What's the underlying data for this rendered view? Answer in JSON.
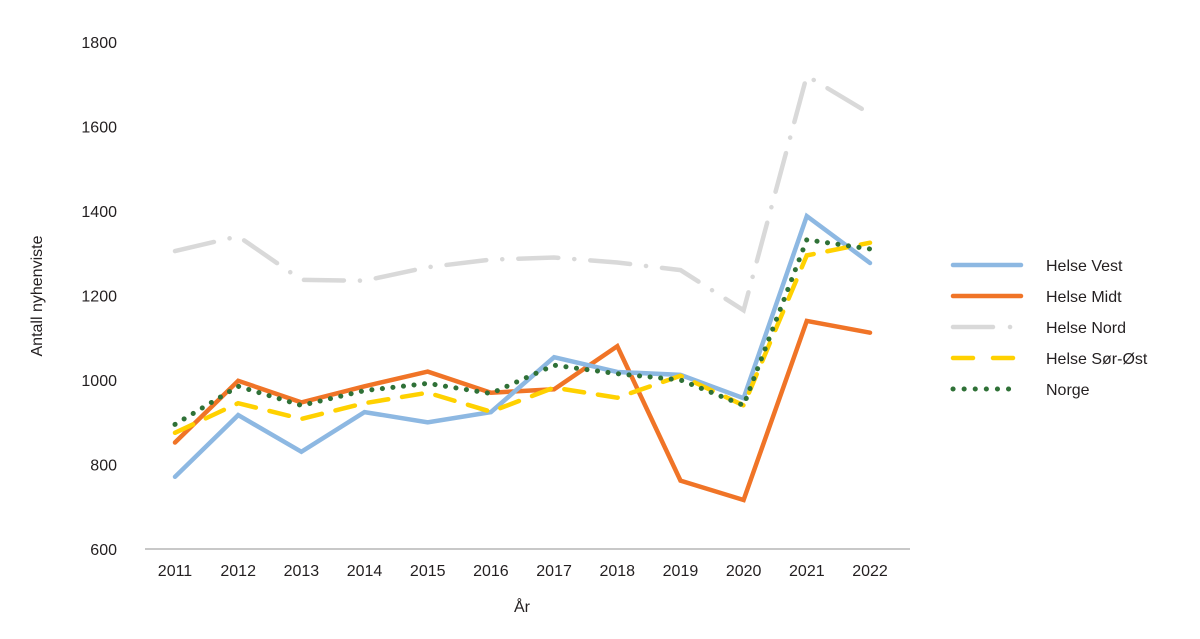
{
  "chart_data": {
    "type": "line",
    "title": "",
    "xlabel": "År",
    "ylabel": "Antall nyhenviste",
    "ylim": [
      600,
      1800
    ],
    "yticks": [
      600,
      800,
      1000,
      1200,
      1400,
      1600,
      1800
    ],
    "grid": false,
    "legend_position": "right",
    "categories": [
      "2011",
      "2012",
      "2013",
      "2014",
      "2015",
      "2016",
      "2017",
      "2018",
      "2019",
      "2020",
      "2021",
      "2022"
    ],
    "series": [
      {
        "name": "Helse Vest",
        "color": "#8db8e2",
        "style": "solid",
        "values": [
          771,
          917,
          830,
          924,
          900,
          924,
          1054,
          1019,
          1012,
          957,
          1388,
          1277
        ]
      },
      {
        "name": "Helse Midt",
        "color": "#f07427",
        "style": "solid",
        "values": [
          852,
          998,
          947,
          985,
          1020,
          970,
          978,
          1080,
          762,
          716,
          1140,
          1112
        ]
      },
      {
        "name": "Helse Nord",
        "color": "#d9d9d9",
        "style": "dash-dot",
        "values": [
          1305,
          1340,
          1237,
          1235,
          1267,
          1285,
          1290,
          1278,
          1260,
          1165,
          1720,
          1630
        ]
      },
      {
        "name": "Helse Sør-Øst",
        "color": "#ffd100",
        "style": "dashed",
        "values": [
          875,
          945,
          908,
          945,
          970,
          925,
          982,
          958,
          1010,
          940,
          1295,
          1325
        ]
      },
      {
        "name": "Norge",
        "color": "#2f7137",
        "style": "dotted",
        "values": [
          895,
          985,
          940,
          975,
          992,
          968,
          1035,
          1015,
          1000,
          940,
          1332,
          1310
        ]
      }
    ]
  }
}
